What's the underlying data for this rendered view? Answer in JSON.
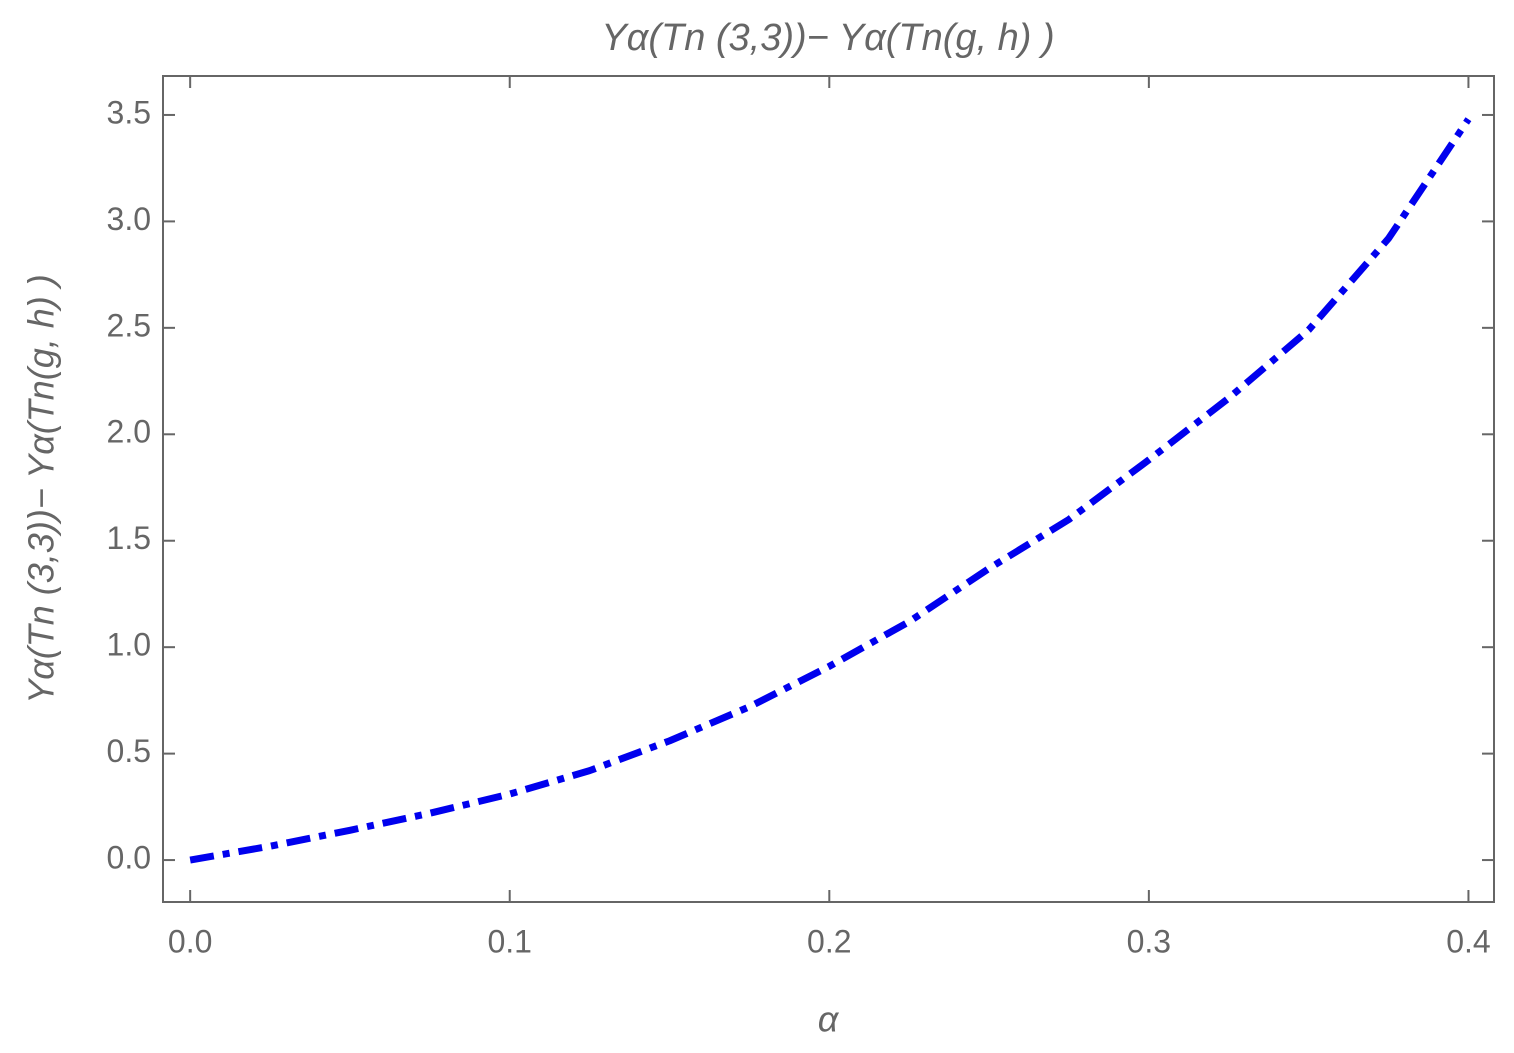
{
  "chart_data": {
    "type": "line",
    "title": "Yα(Tn (3,3))− Yα(Tn(g, h) )",
    "x_label": "α",
    "y_label": "Yα(Tn (3,3))− Yα(Tn(g, h) )",
    "x": [
      0,
      0.025,
      0.05,
      0.075,
      0.1,
      0.125,
      0.15,
      0.175,
      0.2,
      0.225,
      0.25,
      0.275,
      0.3,
      0.325,
      0.35,
      0.375,
      0.4
    ],
    "series": [
      {
        "color": "#0000ee",
        "values": [
          0,
          0.065,
          0.14,
          0.22,
          0.31,
          0.42,
          0.56,
          0.72,
          0.91,
          1.12,
          1.37,
          1.6,
          1.88,
          2.17,
          2.49,
          2.92,
          3.48
        ]
      }
    ],
    "xlim": [
      -0.0085,
      0.408
    ],
    "ylim": [
      -0.197,
      3.683
    ],
    "xticks": [
      {
        "value": 0,
        "label": "0.0"
      },
      0.1,
      0.2,
      0.3,
      0.4
    ],
    "yticks": [
      {
        "value": 0,
        "label": "0.0"
      },
      0.5,
      {
        "value": 1,
        "label": "1.0"
      },
      1.5,
      {
        "value": 2,
        "label": "2.0"
      },
      2.5,
      {
        "value": 3,
        "label": "3.0"
      },
      3.5
    ],
    "grid": false
  }
}
